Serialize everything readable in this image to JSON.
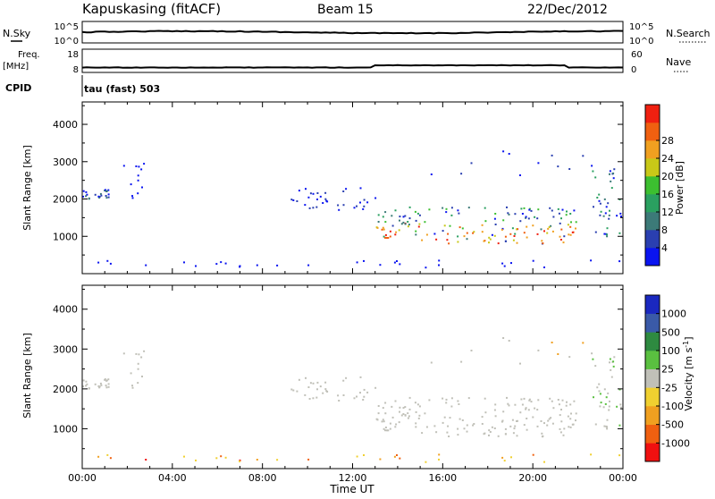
{
  "header": {
    "station": "Kapuskasing (fitACF)",
    "beam": "Beam 15",
    "date": "22/Dec/2012"
  },
  "noise_panel": {
    "left_label": "N.Sky",
    "right_label": "N.Search",
    "left_ticks": [
      "10^5",
      "10^0"
    ],
    "right_ticks": [
      "10^5",
      "10^0"
    ]
  },
  "freq_panel": {
    "left_label_1": "Freq.",
    "left_label_2": "[MHz]",
    "right_label": "Nave",
    "left_ticks": [
      "18",
      "8"
    ],
    "right_ticks": [
      "60",
      "0"
    ]
  },
  "cpid": {
    "label": "CPID",
    "value": "tau (fast) 503"
  },
  "colors": {
    "power": [
      "#0a14f0",
      "#2a3fb0",
      "#3c7a78",
      "#2aa060",
      "#3cbf30",
      "#c8c818",
      "#f0a020",
      "#f06010",
      "#f02010"
    ],
    "velocity": [
      "#f01010",
      "#f06010",
      "#f0a020",
      "#f0d030",
      "#c0c0b8",
      "#5ac040",
      "#2e8a40",
      "#3a5aa8",
      "#1a28c0"
    ]
  },
  "chart_data": [
    {
      "type": "heatmap",
      "quantity": "power",
      "ylabel": "Slant Range [km]",
      "ylim": [
        0,
        4600
      ],
      "yticks": [
        "1000",
        "2000",
        "3000",
        "4000"
      ],
      "colorbar_label": "Power [dB]",
      "colorbar_ticks": [
        "4",
        "8",
        "12",
        "16",
        "20",
        "24",
        "28"
      ]
    },
    {
      "type": "heatmap",
      "quantity": "velocity",
      "xlabel": "Time UT",
      "ylabel": "Slant Range [km]",
      "ylim": [
        0,
        4600
      ],
      "yticks": [
        "1000",
        "2000",
        "3000",
        "4000"
      ],
      "xticks": [
        "00:00",
        "04:00",
        "08:00",
        "12:00",
        "16:00",
        "20:00",
        "00:00"
      ],
      "colorbar_label": "Velocity [m s^-1]",
      "colorbar_ticks": [
        "1000",
        "500",
        "100",
        "25",
        "-25",
        "-100",
        "-500",
        "-1000"
      ]
    }
  ]
}
